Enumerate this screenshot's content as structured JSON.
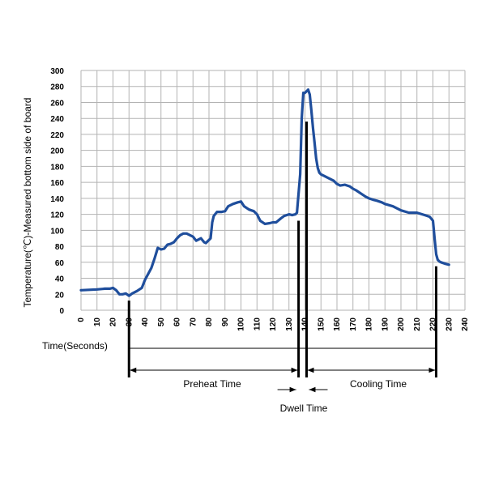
{
  "chart_data": {
    "type": "line",
    "xlabel": "Time(Seconds)",
    "ylabel": "Temperature(℃)-Measured bottom side of board",
    "xlim": [
      0,
      240
    ],
    "ylim": [
      0,
      300
    ],
    "x_ticks": [
      0,
      10,
      20,
      30,
      40,
      50,
      60,
      70,
      80,
      90,
      100,
      110,
      120,
      130,
      140,
      150,
      160,
      170,
      180,
      190,
      200,
      210,
      220,
      230,
      240
    ],
    "y_ticks": [
      0,
      20,
      40,
      60,
      80,
      100,
      120,
      140,
      160,
      180,
      200,
      220,
      240,
      260,
      280,
      300
    ],
    "grid": true,
    "series": [
      {
        "color": "#1f4e9c",
        "x": [
          0,
          10,
          15,
          18,
          20,
          22,
          24,
          26,
          28,
          30,
          32,
          35,
          38,
          40,
          44,
          46,
          48,
          50,
          52,
          54,
          56,
          58,
          60,
          62,
          64,
          66,
          70,
          72,
          75,
          77,
          78,
          80,
          81,
          82,
          83,
          85,
          88,
          90,
          92,
          95,
          98,
          100,
          102,
          105,
          108,
          110,
          112,
          115,
          118,
          120,
          122,
          125,
          127,
          130,
          132,
          134,
          135,
          137,
          138,
          139,
          140,
          141,
          142,
          143,
          144,
          145,
          146,
          147,
          148,
          149,
          150,
          152,
          155,
          158,
          160,
          162,
          165,
          168,
          170,
          172,
          175,
          178,
          180,
          183,
          185,
          188,
          190,
          195,
          200,
          205,
          210,
          215,
          218,
          220,
          221,
          222,
          223,
          224,
          225,
          228,
          230
        ],
        "y": [
          25,
          26,
          27,
          27,
          28,
          25,
          20,
          20,
          21,
          18,
          21,
          24,
          28,
          38,
          53,
          65,
          78,
          76,
          77,
          82,
          83,
          85,
          90,
          94,
          96,
          96,
          92,
          87,
          90,
          85,
          84,
          88,
          90,
          110,
          118,
          123,
          123,
          124,
          130,
          133,
          135,
          136,
          130,
          126,
          124,
          120,
          112,
          108,
          109,
          110,
          110,
          115,
          118,
          120,
          119,
          120,
          122,
          170,
          240,
          272,
          272,
          274,
          276,
          270,
          250,
          228,
          210,
          190,
          178,
          172,
          170,
          168,
          165,
          162,
          158,
          156,
          157,
          155,
          152,
          150,
          146,
          142,
          140,
          138,
          137,
          135,
          133,
          130,
          125,
          122,
          122,
          119,
          117,
          112,
          90,
          70,
          63,
          61,
          60,
          58,
          57
        ]
      }
    ],
    "markers": [
      {
        "x": 30,
        "y_top": 12
      },
      {
        "x": 136,
        "y_top": 112
      },
      {
        "x": 141,
        "y_top": 236
      },
      {
        "x": 222,
        "y_top": 55
      }
    ],
    "annotations": {
      "preheat": "Preheat Time",
      "dwell": "Dwell Time",
      "cooling": "Cooling Time"
    }
  }
}
